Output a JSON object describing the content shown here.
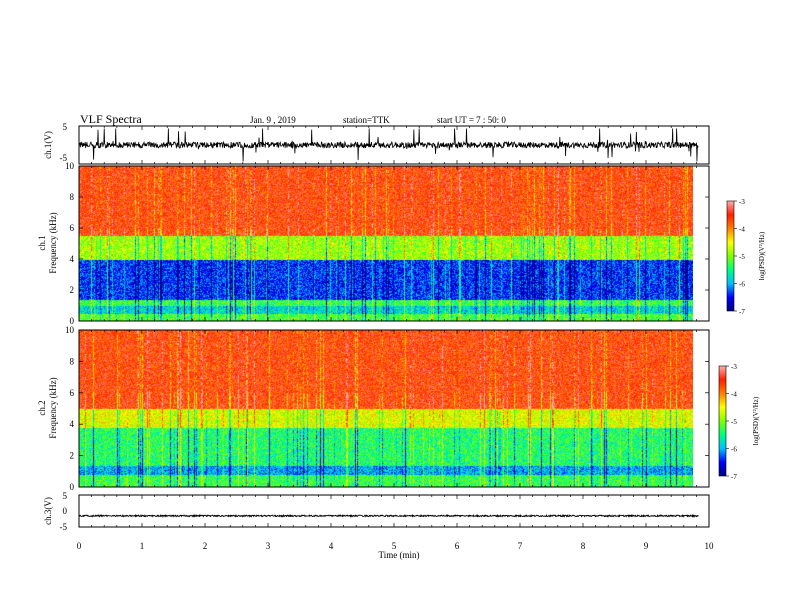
{
  "header": {
    "title": "VLF Spectra",
    "date": "Jan. 9 , 2019",
    "station": "station=TTK",
    "start": "start UT = 7 : 50: 0"
  },
  "chart_data": [
    {
      "type": "line",
      "name": "ch1-waveform",
      "ylabel": "ch.1(V)",
      "xlim": [
        0,
        10
      ],
      "ylim": [
        -5,
        5
      ],
      "yticks": [
        5,
        -5
      ],
      "baseline": 0,
      "noise_note_free": true,
      "spiky": true
    },
    {
      "type": "heatmap",
      "name": "ch1-spectrogram",
      "ylabel_top": "ch.1",
      "ylabel": "Frequency (kHz)",
      "xlim": [
        0,
        9.83
      ],
      "ylim": [
        0,
        10
      ],
      "yticks": [
        0,
        2,
        4,
        6,
        8,
        10
      ],
      "colorbar": {
        "label": "log(PSD)(V²/Hz)",
        "range": [
          -7,
          -3
        ],
        "ticks": [
          -3,
          -4,
          -5,
          -6,
          -7
        ],
        "colors": [
          "#000080",
          "#0000ff",
          "#00bfff",
          "#00ff80",
          "#7fff00",
          "#ffff00",
          "#ff8000",
          "#ff2000",
          "#ffb0b0"
        ]
      },
      "bands_khz": [
        {
          "from": 0,
          "to": 0.5,
          "level": -5.2
        },
        {
          "from": 0.5,
          "to": 1.0,
          "level": -5.8
        },
        {
          "from": 1.0,
          "to": 1.4,
          "level": -5.3
        },
        {
          "from": 1.4,
          "to": 4.0,
          "level": -6.4
        },
        {
          "from": 4.0,
          "to": 5.5,
          "level": -4.9
        },
        {
          "from": 5.5,
          "to": 10,
          "level": -3.6
        }
      ]
    },
    {
      "type": "heatmap",
      "name": "ch2-spectrogram",
      "ylabel_top": "ch.2",
      "ylabel": "Frequency (kHz)",
      "xlim": [
        0,
        9.83
      ],
      "ylim": [
        0,
        10
      ],
      "yticks": [
        0,
        2,
        4,
        6,
        8,
        10
      ],
      "colorbar": {
        "label": "log(PSD)(V²/Hz)",
        "range": [
          -7,
          -3
        ],
        "ticks": [
          -3,
          -4,
          -5,
          -6,
          -7
        ],
        "colors": [
          "#000080",
          "#0000ff",
          "#00bfff",
          "#00ff80",
          "#7fff00",
          "#ffff00",
          "#ff8000",
          "#ff2000",
          "#ffb0b0"
        ]
      },
      "bands_khz": [
        {
          "from": 0,
          "to": 0.8,
          "level": -5.3
        },
        {
          "from": 0.8,
          "to": 1.4,
          "level": -6.0
        },
        {
          "from": 1.4,
          "to": 3.8,
          "level": -5.4
        },
        {
          "from": 3.8,
          "to": 5.0,
          "level": -4.6
        },
        {
          "from": 5.0,
          "to": 10,
          "level": -3.6
        }
      ]
    },
    {
      "type": "line",
      "name": "ch3-waveform",
      "ylabel": "ch.3(V)",
      "xlim": [
        0,
        10
      ],
      "ylim": [
        -5,
        5
      ],
      "yticks": [
        5,
        0,
        -5
      ],
      "baseline": -1.5,
      "spiky": false
    }
  ],
  "xaxis": {
    "label": "Time (min)",
    "ticks": [
      0,
      1,
      2,
      3,
      4,
      5,
      6,
      7,
      8,
      9,
      10
    ]
  }
}
